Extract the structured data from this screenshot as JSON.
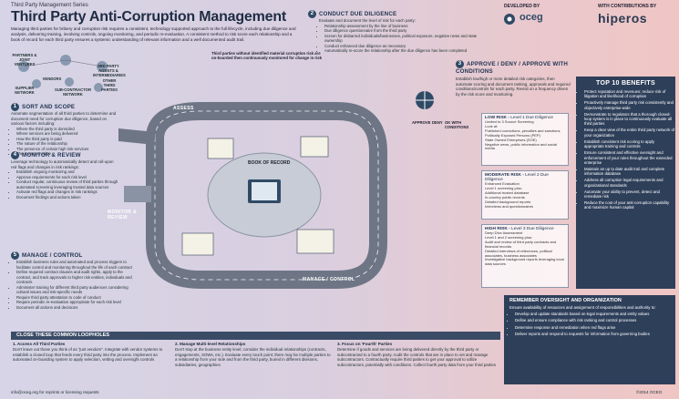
{
  "header": {
    "series": "Third Party Management Series",
    "title": "Third Party Anti-Corruption Management",
    "developed_by": "DEVELOPED BY",
    "developer": "oceg",
    "contrib": "WITH CONTRIBUTIONS BY",
    "contributor": "hiperos"
  },
  "intro": "Managing third parties for bribery and corruption risk requires a consistent, technology supported approach to the full lifecycle, including due diligence and analysis, delivering training, involving controls, ongoing monitoring, and periodic re-evaluation. A consistent method to risk score each relationship and a book of record for each third party ensures a systemic understanding of relevant information and a well documented audit trail.",
  "stakeholders": {
    "partners": "PARTNERS & JOINT VENTURES",
    "vendors": "VENDORS",
    "supplier": "SUPPLIER NETWORK",
    "subcontractor": "SUB-CONTRACTOR NETWORK",
    "agents": "3RD PARTY AGENTS & INTERMEDIARIES",
    "other": "OTHER THIRD PARTIES"
  },
  "road_note": "Third parties without identified material corruption risk are on-boarded then continuously monitored for change in risk",
  "road_labels": {
    "assess": "ASSESS",
    "monitor": "MONITOR & REVIEW",
    "manage": "MANAGE / CONTROL",
    "book": "BOOK OF RECORD"
  },
  "steps": {
    "s1": {
      "num": "1",
      "title": "SORT AND SCOPE",
      "text": "Automate segmentation of all third parties to determine and document need for corruption due diligence, based on various factors including:",
      "bullets": [
        "Where the third party is domiciled",
        "Where services are being delivered",
        "How the third party is paid",
        "The nature of the relationship",
        "The presence of certain high risk services",
        "The monetary value"
      ]
    },
    "s2": {
      "num": "2",
      "title": "CONDUCT DUE DILIGENCE",
      "text": "Evaluate and document the level of risk for each party:",
      "bullets": [
        "Relationship assessment by the line of business",
        "Due diligence questionnaire from the third party",
        "Screen for disbarred individuals/businesses, political exposure, negative news and state ownership",
        "Conduct enhanced due diligence as necessary",
        "Automatically re-score the relationship after the due diligence has been completed"
      ]
    },
    "s3": {
      "num": "3",
      "title": "APPROVE / DENY / APPROVE WITH CONDITIONS",
      "text": "Establish low/high or more detailed risk categories, then automate scoring and document ranking, approvals and required conditions/controls for each party. Revisit on a frequency driven by the risk score and monitoring."
    },
    "s4": {
      "num": "4",
      "title": "MONITOR & REVIEW",
      "text": "Leverage technology to automatically detect and roll-upon red flags and changes in risk rankings:",
      "bullets": [
        "Establish ongoing monitoring and",
        "Approve requirements for each risk level",
        "Conduct regular, continuous review of third parties through automated screening leveraging trusted data sources",
        "Activate red flags and changes in risk rankings",
        "Document findings and actions taken"
      ]
    },
    "s5": {
      "num": "5",
      "title": "MANAGE / CONTROL",
      "bullets": [
        "Establish business rules and automated and process triggers to facilitate control and monitoring throughout the life of each contract",
        "Define required contract clauses and audit rights, apply to the contract, and track approvals to higher risk entities, individuals and contracts",
        "Administer training for different third party audiences considering cultural issues and risk-specific needs",
        "Require third party attestation to code of conduct",
        "Require periodic re-evaluation appropriate for each risk level",
        "Document all actions and decisions"
      ]
    }
  },
  "decisions": [
    "APPROVE",
    "DENY",
    "OK WITH CONDITIONS"
  ],
  "risk": {
    "low": {
      "title": "LOW RISK",
      "sub": "Level 1 Due Diligence",
      "lines": [
        "Limited to 3 Source Screening",
        "Look at:",
        "Published convictions, penalties and sanctions",
        "Politically Exposed Persons (PEP)",
        "State Owned Enterprises (SOE)",
        "Negative news, public information and social media"
      ]
    },
    "moderate": {
      "title": "MODERATE RISK",
      "sub": "Level 2 Due Diligence",
      "lines": [
        "Enhanced Evaluation",
        "Level 1 screening plus:",
        "Additional trusted database",
        "In-country public records",
        "Detailed background reports",
        "Interviews and questionnaires"
      ]
    },
    "high": {
      "title": "HIGH RISK",
      "sub": "Level 3 Due Diligence",
      "lines": [
        "Deep Dive Assessment",
        "Level 1 and 2 screening plus:",
        "Audit and review of third party contracts and financial records",
        "Detailed interviews of references, political associates, business associates",
        "Investigative background reports leveraging local data sources"
      ]
    }
  },
  "top10": {
    "title": "TOP 10 BENEFITS",
    "items": [
      "Protect reputation and revenues; reduce risk of litigation and likelihood of corruption",
      "Proactively manage third party risk consistently and objectively enterprise-wide",
      "Demonstrate to regulators that a thorough closed-loop system is in place to continuously evaluate all third parties",
      "Keep a clear view of the entire third party network of your organization",
      "Establish consistent risk scoring to apply appropriate training and controls",
      "Ensure consistent and effective oversight and enforcement of your rules throughout the extended enterprise",
      "Maintain an up to date audit trail and complete information database",
      "Address all corruption legal requirements and organizational standards",
      "Automate your ability to prevent, detect and remediate risk",
      "Reduce the cost of your anti-corruption capability and maximize human capital"
    ]
  },
  "remember": {
    "title": "REMEMBER OVERSIGHT AND ORGANIZATION",
    "text": "Ensure availability of resources and assignment of responsibilities and authority to:",
    "items": [
      "Develop and update standards based on legal requirements and entity values",
      "Define and ensure compliance with risk ranking and control processes",
      "Determine response and remediation when red flags arise",
      "Deliver reports and respond to requests for information from governing bodies"
    ]
  },
  "loopholes": {
    "title": "CLOSE THESE COMMON LOOPHOLES",
    "cols": [
      {
        "title": "1. Access All Third Parties",
        "text": "Don't leave out those you think of as \"just vendors\". Integrate with vendor systems to establish a closed loop that feeds every third party into the process. Implement an automated on-boarding system to apply selection, vetting and oversight controls"
      },
      {
        "title": "2. Manage Multi-level Relationships",
        "text": "Don't stop at the business entity level; consider the individual relationships (contracts, engagements, SOWs, etc.). Evaluate every touch point; there may be multiple parties to a relationship from your side and from the third party, buried in different divisions, subsidiaries, geographies"
      },
      {
        "title": "3. Focus on 'Fourth' Parties",
        "text": "Determine if goods and services are being delivered directly by the third party or subcontracted to a fourth party. Audit the controls that are in place to vet and manage subcontractors. Contractually require third parties to get your approval to utilize subcontractors, potentially with conditions. Collect fourth party data from your third parties"
      }
    ]
  },
  "footer": {
    "left": "info@oceg.org for reprints or licensing requests",
    "right": "©2014 OCEG"
  }
}
